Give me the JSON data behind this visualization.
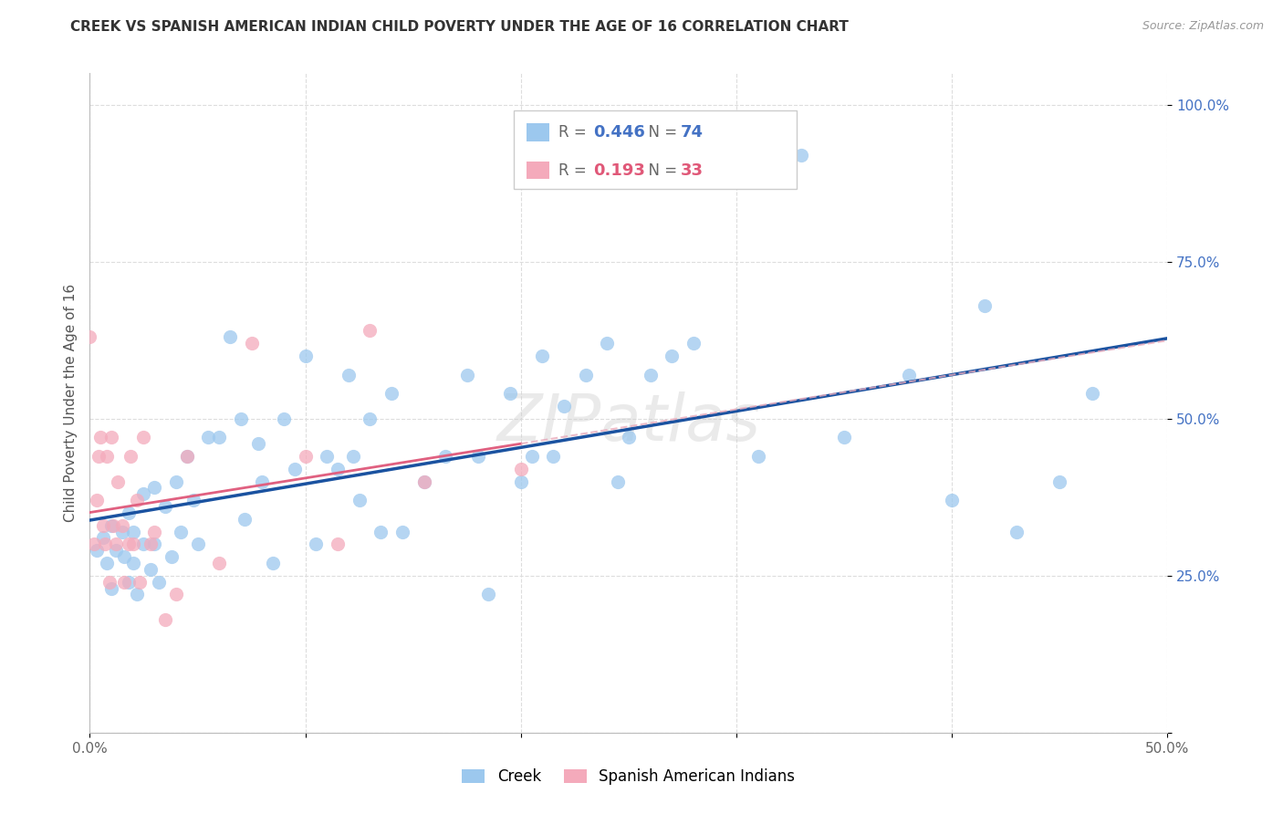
{
  "title": "CREEK VS SPANISH AMERICAN INDIAN CHILD POVERTY UNDER THE AGE OF 16 CORRELATION CHART",
  "source": "Source: ZipAtlas.com",
  "ylabel": "Child Poverty Under the Age of 16",
  "xlim": [
    0.0,
    0.5
  ],
  "ylim": [
    0.0,
    1.05
  ],
  "xticks": [
    0.0,
    0.1,
    0.2,
    0.3,
    0.4,
    0.5
  ],
  "xticklabels": [
    "0.0%",
    "",
    "",
    "",
    "",
    "50.0%"
  ],
  "yticks": [
    0.0,
    0.25,
    0.5,
    0.75,
    1.0
  ],
  "yticklabels": [
    "",
    "25.0%",
    "50.0%",
    "75.0%",
    "100.0%"
  ],
  "legend1_label": "Creek",
  "legend2_label": "Spanish American Indians",
  "R_creek": 0.446,
  "N_creek": 74,
  "R_sai": 0.193,
  "N_sai": 33,
  "creek_color": "#9CC8EE",
  "sai_color": "#F4AABB",
  "creek_line_color": "#1A52A0",
  "sai_line_color": "#E06080",
  "sai_dash_color": "#E8AABB",
  "watermark": "ZIPatlas",
  "title_fontsize": 11,
  "background_color": "#FFFFFF",
  "grid_color": "#DDDDDD",
  "creek_x": [
    0.003,
    0.006,
    0.008,
    0.01,
    0.01,
    0.012,
    0.015,
    0.016,
    0.018,
    0.018,
    0.02,
    0.02,
    0.022,
    0.025,
    0.025,
    0.028,
    0.03,
    0.03,
    0.032,
    0.035,
    0.038,
    0.04,
    0.042,
    0.045,
    0.048,
    0.05,
    0.055,
    0.06,
    0.065,
    0.07,
    0.072,
    0.078,
    0.08,
    0.085,
    0.09,
    0.095,
    0.1,
    0.105,
    0.11,
    0.115,
    0.12,
    0.122,
    0.125,
    0.13,
    0.135,
    0.14,
    0.145,
    0.155,
    0.165,
    0.175,
    0.18,
    0.185,
    0.195,
    0.2,
    0.205,
    0.21,
    0.215,
    0.22,
    0.23,
    0.24,
    0.245,
    0.25,
    0.26,
    0.27,
    0.28,
    0.31,
    0.33,
    0.35,
    0.38,
    0.4,
    0.415,
    0.43,
    0.45,
    0.465
  ],
  "creek_y": [
    0.29,
    0.31,
    0.27,
    0.33,
    0.23,
    0.29,
    0.32,
    0.28,
    0.35,
    0.24,
    0.32,
    0.27,
    0.22,
    0.38,
    0.3,
    0.26,
    0.39,
    0.3,
    0.24,
    0.36,
    0.28,
    0.4,
    0.32,
    0.44,
    0.37,
    0.3,
    0.47,
    0.47,
    0.63,
    0.5,
    0.34,
    0.46,
    0.4,
    0.27,
    0.5,
    0.42,
    0.6,
    0.3,
    0.44,
    0.42,
    0.57,
    0.44,
    0.37,
    0.5,
    0.32,
    0.54,
    0.32,
    0.4,
    0.44,
    0.57,
    0.44,
    0.22,
    0.54,
    0.4,
    0.44,
    0.6,
    0.44,
    0.52,
    0.57,
    0.62,
    0.4,
    0.47,
    0.57,
    0.6,
    0.62,
    0.44,
    0.92,
    0.47,
    0.57,
    0.37,
    0.68,
    0.32,
    0.4,
    0.54
  ],
  "sai_x": [
    0.0,
    0.002,
    0.003,
    0.004,
    0.005,
    0.006,
    0.007,
    0.008,
    0.009,
    0.01,
    0.011,
    0.012,
    0.013,
    0.015,
    0.016,
    0.018,
    0.019,
    0.02,
    0.022,
    0.023,
    0.025,
    0.028,
    0.03,
    0.035,
    0.04,
    0.045,
    0.06,
    0.075,
    0.1,
    0.115,
    0.13,
    0.155,
    0.2
  ],
  "sai_y": [
    0.63,
    0.3,
    0.37,
    0.44,
    0.47,
    0.33,
    0.3,
    0.44,
    0.24,
    0.47,
    0.33,
    0.3,
    0.4,
    0.33,
    0.24,
    0.3,
    0.44,
    0.3,
    0.37,
    0.24,
    0.47,
    0.3,
    0.32,
    0.18,
    0.22,
    0.44,
    0.27,
    0.62,
    0.44,
    0.3,
    0.64,
    0.4,
    0.42
  ]
}
